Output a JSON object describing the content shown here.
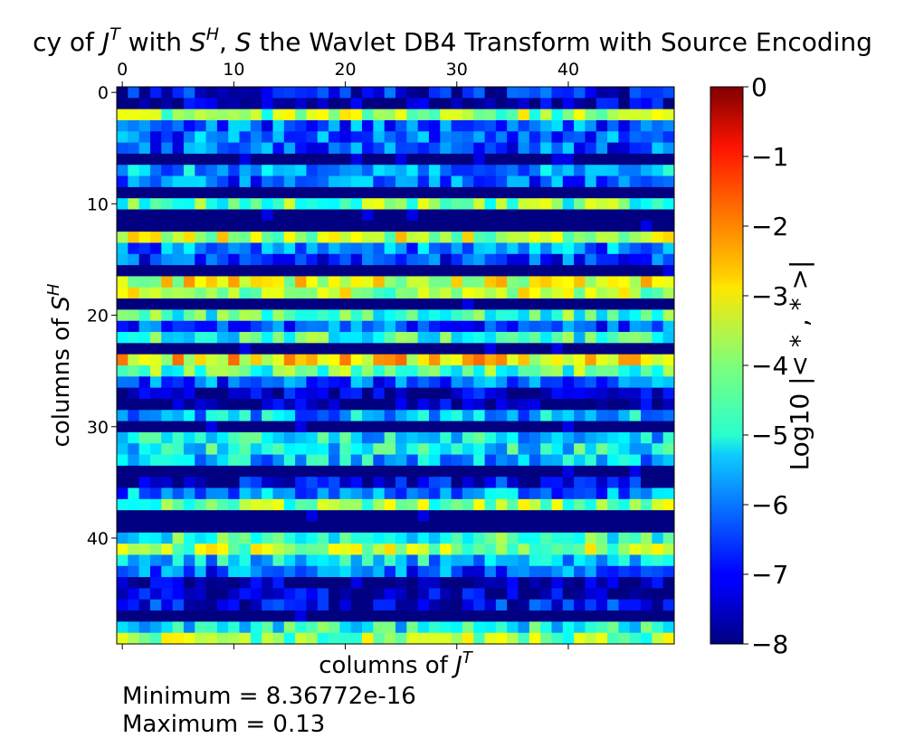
{
  "chart_data": {
    "type": "heatmap",
    "title_parts": {
      "pre": "cy of ",
      "a": "J",
      "a_sup": "T",
      "mid": " with ",
      "b": "S",
      "b_sup": "H",
      "sep": ", ",
      "c": "S",
      "post": " the Wavlet DB4 Transform with Source Encoding"
    },
    "xlabel_parts": {
      "pre": "columns of ",
      "sym": "J",
      "sup": "T"
    },
    "ylabel_parts": {
      "pre": "columns of ",
      "sym": "S",
      "sup": "H"
    },
    "colorbar_label": "Log10 |< * , * >|",
    "colormap": "jet",
    "x_ticks": [
      0,
      10,
      20,
      30,
      40
    ],
    "y_ticks": [
      0,
      10,
      20,
      30,
      40
    ],
    "xlim": [
      -0.5,
      49.5
    ],
    "ylim": [
      -0.5,
      49.5
    ],
    "vmin": -8,
    "vmax": 0,
    "colorbar_ticks": [
      0,
      -1,
      -2,
      -3,
      -4,
      -5,
      -6,
      -7,
      -8
    ],
    "colorbar_tick_labels": [
      "0",
      "−1",
      "−2",
      "−3",
      "−4",
      "−5",
      "−6",
      "−7",
      "−8"
    ],
    "rows": 50,
    "cols": 50,
    "row_levels": [
      -7,
      -7.6,
      -3.8,
      -6.3,
      -6.2,
      -6.4,
      -8,
      -5.7,
      -6.2,
      -8,
      -4.2,
      -8,
      -8,
      -3.5,
      -6,
      -6.5,
      -8,
      -3.2,
      -3.6,
      -8,
      -4.5,
      -6.4,
      -4.6,
      -8,
      -2.9,
      -4.3,
      -6.3,
      -7.6,
      -7.8,
      -5.6,
      -8,
      -5.2,
      -5,
      -5.5,
      -8,
      -7.2,
      -5.9,
      -4,
      -8,
      -8,
      -4.7,
      -3.8,
      -5.4,
      -6.3,
      -7.8,
      -7.6,
      -7.1,
      -8,
      -4.9,
      -3.9
    ]
  },
  "stats": {
    "minimum": "Minimum = 8.36772e-16",
    "maximum": "Maximum = 0.13"
  }
}
